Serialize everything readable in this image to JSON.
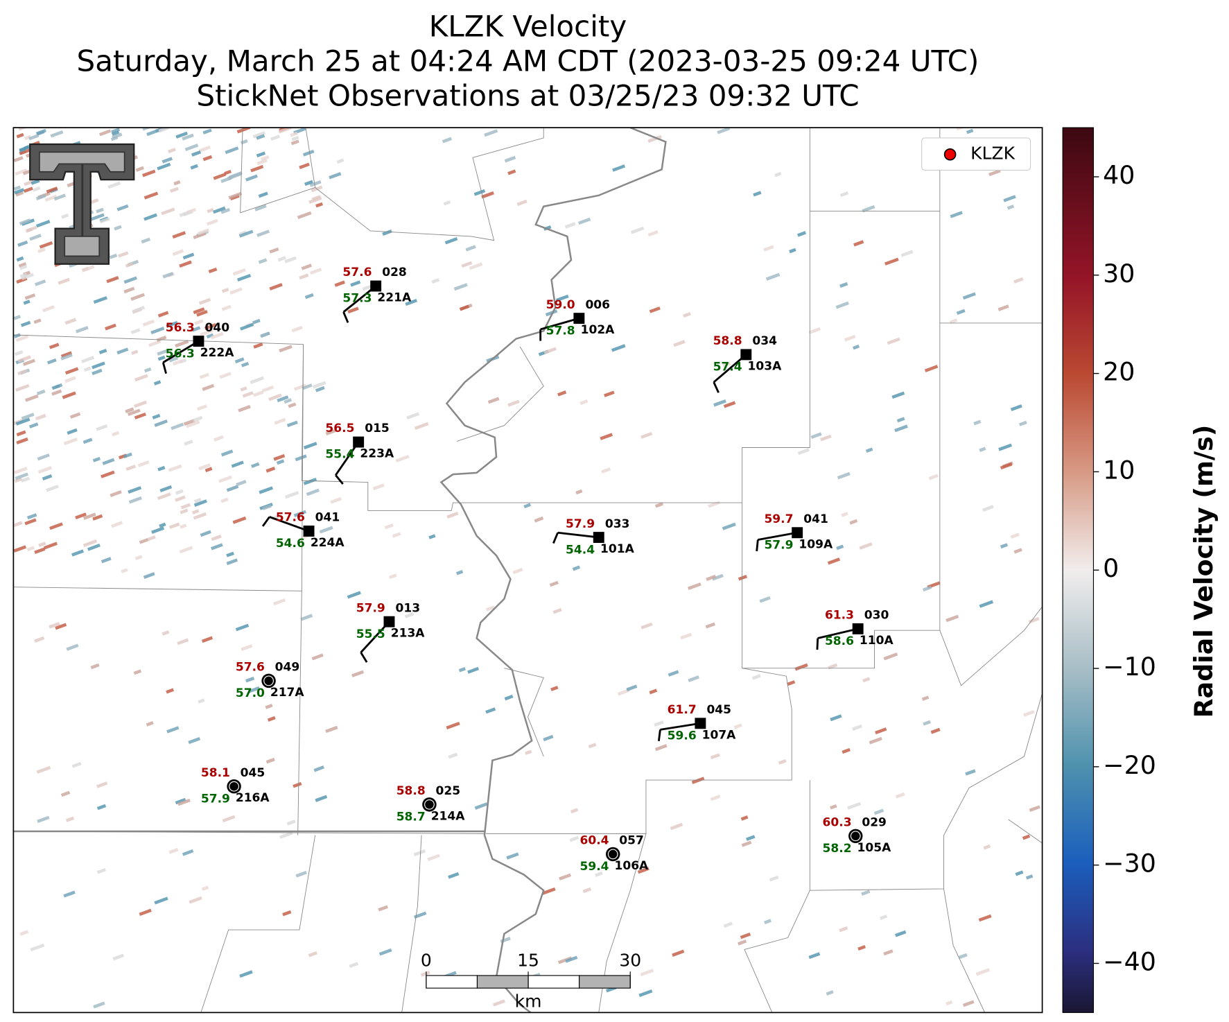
{
  "title": [
    "KLZK Velocity",
    "Saturday, March 25 at 04:24 AM CDT (2023-03-25 09:24 UTC)",
    "StickNet Observations at 03/25/23 09:32 UTC"
  ],
  "legend": {
    "label": "KLZK"
  },
  "stations": [
    {
      "id": "222A",
      "temperature": "56.3",
      "dewpoint": "56.3",
      "code": "040"
    },
    {
      "id": "221A",
      "temperature": "57.6",
      "dewpoint": "57.3",
      "code": "028"
    },
    {
      "id": "102A",
      "temperature": "59.0",
      "dewpoint": "57.8",
      "code": "006"
    },
    {
      "id": "103A",
      "temperature": "58.8",
      "dewpoint": "57.4",
      "code": "034"
    },
    {
      "id": "223A",
      "temperature": "56.5",
      "dewpoint": "55.4",
      "code": "015"
    },
    {
      "id": "224A",
      "temperature": "57.6",
      "dewpoint": "54.6",
      "code": "041"
    },
    {
      "id": "101A",
      "temperature": "57.9",
      "dewpoint": "54.4",
      "code": "033"
    },
    {
      "id": "109A",
      "temperature": "59.7",
      "dewpoint": "57.9",
      "code": "041"
    },
    {
      "id": "213A",
      "temperature": "57.9",
      "dewpoint": "55.5",
      "code": "013"
    },
    {
      "id": "110A",
      "temperature": "61.3",
      "dewpoint": "58.6",
      "code": "030"
    },
    {
      "id": "217A",
      "temperature": "57.6",
      "dewpoint": "57.0",
      "code": "049"
    },
    {
      "id": "107A",
      "temperature": "61.7",
      "dewpoint": "59.6",
      "code": "045"
    },
    {
      "id": "216A",
      "temperature": "58.1",
      "dewpoint": "57.9",
      "code": "045"
    },
    {
      "id": "214A",
      "temperature": "58.8",
      "dewpoint": "58.7",
      "code": "025"
    },
    {
      "id": "106A",
      "temperature": "60.4",
      "dewpoint": "59.4",
      "code": "057"
    },
    {
      "id": "105A",
      "temperature": "60.3",
      "dewpoint": "58.2",
      "code": "029"
    }
  ],
  "colorbar": {
    "label": "Radial Velocity (m/s)",
    "lim": [
      -45,
      45
    ],
    "ticks": [
      {
        "value": -40,
        "label": "−40"
      },
      {
        "value": -30,
        "label": "−30"
      },
      {
        "value": -20,
        "label": "−20"
      },
      {
        "value": -10,
        "label": "−10"
      },
      0,
      10,
      20,
      30,
      40
    ]
  },
  "scale_bar": {
    "ticks": [
      0,
      15,
      30
    ],
    "unit": "km"
  }
}
